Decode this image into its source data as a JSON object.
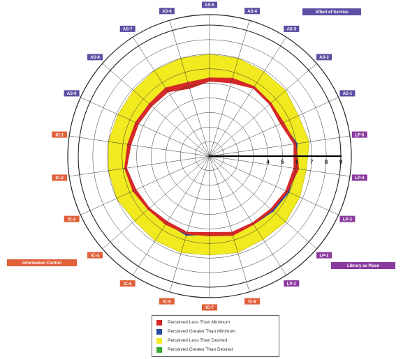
{
  "chart_data": {
    "type": "radar",
    "rings": {
      "min": 0,
      "max": 9,
      "count": 9
    },
    "radial_ticks": [
      "4",
      "5",
      "6",
      "7",
      "8",
      "9"
    ],
    "groups": [
      {
        "label": "Affect of Service",
        "color": "#5a4fa3",
        "axes": [
          "AS-1",
          "AS-2",
          "AS-3",
          "AS-4",
          "AS-5",
          "AS-6",
          "AS-7",
          "AS-8",
          "AS-9"
        ]
      },
      {
        "label": "Library as Place",
        "color": "#8a3b9e",
        "axes": [
          "LP-1",
          "LP-2",
          "LP-3",
          "LP-4",
          "LP-5"
        ]
      },
      {
        "label": "Information Control",
        "color": "#e0603a",
        "axes": [
          "IC-1",
          "IC-2",
          "IC-3",
          "IC-4",
          "IC-5",
          "IC-6",
          "IC-7",
          "IC-8"
        ]
      }
    ],
    "axis_order": [
      "LP-5",
      "AS-1",
      "AS-2",
      "AS-3",
      "AS-4",
      "AS-5",
      "AS-6",
      "AS-7",
      "AS-8",
      "AS-9",
      "IC-1",
      "IC-2",
      "IC-3",
      "IC-4",
      "IC-5",
      "IC-6",
      "IC-7",
      "IC-8",
      "LP-1",
      "LP-2",
      "LP-3",
      "LP-4"
    ],
    "series": [
      {
        "name": "Desired",
        "values": [
          6.9,
          6.7,
          6.9,
          6.9,
          7.0,
          7.0,
          7.0,
          7.0,
          6.9,
          6.9,
          7.0,
          7.0,
          7.0,
          6.8,
          6.9,
          6.9,
          6.8,
          6.9,
          6.8,
          6.9,
          6.8,
          6.7
        ]
      },
      {
        "name": "Minimum",
        "values": [
          6.0,
          5.6,
          5.6,
          5.7,
          5.6,
          5.4,
          5.3,
          5.6,
          5.5,
          5.6,
          5.7,
          5.9,
          5.8,
          5.6,
          5.6,
          5.6,
          5.5,
          5.7,
          5.6,
          5.7,
          5.9,
          6.2
        ]
      },
      {
        "name": "Perceived",
        "values": [
          6.1,
          5.5,
          5.6,
          5.7,
          5.4,
          5.3,
          5.0,
          5.4,
          5.4,
          5.5,
          5.6,
          5.9,
          5.7,
          5.6,
          5.5,
          5.7,
          5.4,
          5.6,
          5.6,
          5.8,
          6.0,
          6.0
        ]
      }
    ],
    "colors": {
      "less_than_minimum": "#d62828",
      "greater_than_minimum": "#2a4da3",
      "less_than_desired": "#f0ea1f",
      "greater_than_desired": "#3aaa35"
    }
  },
  "legend": [
    {
      "label": "Perceived Less Than Minimum",
      "color": "#d62828"
    },
    {
      "label": "Perceived Greater Than Minimum",
      "color": "#2a4da3"
    },
    {
      "label": "Perceived Less Than Desired",
      "color": "#f0ea1f"
    },
    {
      "label": "Perceived Greater Than Desired",
      "color": "#3aaa35"
    }
  ]
}
